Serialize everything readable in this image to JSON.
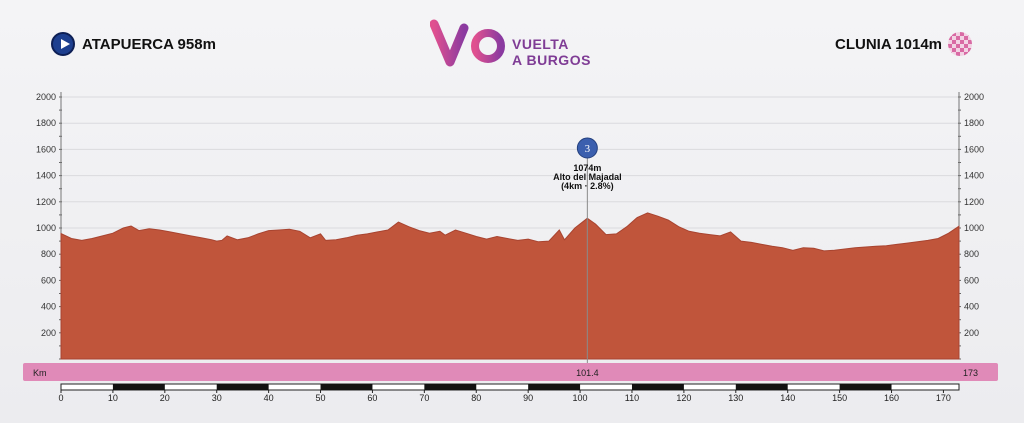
{
  "header": {
    "start": "ATAPUERCA 958m",
    "finish": "CLUNIA 1014m",
    "logo_line1": "VUELTA",
    "logo_line2": "A BURGOS"
  },
  "colors": {
    "profile_fill": "#c0553b",
    "profile_edge": "#a84430",
    "distance_band": "#e08ab8",
    "start_marker": "#1d3f8f",
    "climb_badge": "#3b5fae"
  },
  "chart_data": {
    "type": "area",
    "title": "",
    "xlabel": "",
    "ylabel": "",
    "xlim": [
      0,
      173
    ],
    "ylim": [
      0,
      2000
    ],
    "yticks": [
      200,
      400,
      600,
      800,
      1000,
      1200,
      1400,
      1600,
      1800,
      2000
    ],
    "xticks": [
      0,
      10,
      20,
      30,
      40,
      50,
      60,
      70,
      80,
      90,
      100,
      110,
      120,
      130,
      140,
      150,
      160,
      170
    ],
    "km_label": "Km",
    "band_marks": [
      "101.4",
      "173"
    ],
    "series": [
      {
        "values": [
          [
            0,
            958
          ],
          [
            2,
            920
          ],
          [
            4,
            905
          ],
          [
            6,
            920
          ],
          [
            8,
            940
          ],
          [
            10,
            960
          ],
          [
            12,
            1000
          ],
          [
            13.5,
            1015
          ],
          [
            15,
            980
          ],
          [
            17,
            995
          ],
          [
            19,
            985
          ],
          [
            21,
            970
          ],
          [
            23,
            955
          ],
          [
            25,
            940
          ],
          [
            27,
            925
          ],
          [
            29,
            910
          ],
          [
            30,
            900
          ],
          [
            31,
            905
          ],
          [
            32,
            940
          ],
          [
            34,
            910
          ],
          [
            36,
            925
          ],
          [
            38,
            955
          ],
          [
            40,
            980
          ],
          [
            42,
            985
          ],
          [
            44,
            990
          ],
          [
            46,
            975
          ],
          [
            48,
            925
          ],
          [
            50,
            955
          ],
          [
            51,
            905
          ],
          [
            53,
            910
          ],
          [
            55,
            925
          ],
          [
            57,
            945
          ],
          [
            59,
            955
          ],
          [
            61,
            970
          ],
          [
            63,
            985
          ],
          [
            65,
            1045
          ],
          [
            67,
            1010
          ],
          [
            69,
            980
          ],
          [
            71,
            960
          ],
          [
            73,
            975
          ],
          [
            74,
            945
          ],
          [
            76,
            985
          ],
          [
            78,
            960
          ],
          [
            80,
            935
          ],
          [
            82,
            915
          ],
          [
            84,
            935
          ],
          [
            86,
            920
          ],
          [
            88,
            905
          ],
          [
            90,
            915
          ],
          [
            92,
            895
          ],
          [
            94,
            900
          ],
          [
            96,
            985
          ],
          [
            97,
            910
          ],
          [
            99,
            1000
          ],
          [
            101.4,
            1074
          ],
          [
            103,
            1030
          ],
          [
            105,
            950
          ],
          [
            107,
            955
          ],
          [
            109,
            1010
          ],
          [
            111,
            1080
          ],
          [
            113,
            1115
          ],
          [
            115,
            1090
          ],
          [
            117,
            1060
          ],
          [
            119,
            1010
          ],
          [
            121,
            975
          ],
          [
            123,
            960
          ],
          [
            125,
            950
          ],
          [
            127,
            940
          ],
          [
            129,
            970
          ],
          [
            131,
            900
          ],
          [
            133,
            890
          ],
          [
            135,
            875
          ],
          [
            137,
            860
          ],
          [
            139,
            850
          ],
          [
            141,
            830
          ],
          [
            143,
            850
          ],
          [
            145,
            845
          ],
          [
            147,
            825
          ],
          [
            149,
            830
          ],
          [
            151,
            840
          ],
          [
            153,
            850
          ],
          [
            155,
            855
          ],
          [
            157,
            860
          ],
          [
            159,
            865
          ],
          [
            161,
            875
          ],
          [
            163,
            885
          ],
          [
            165,
            895
          ],
          [
            167,
            905
          ],
          [
            169,
            920
          ],
          [
            171,
            960
          ],
          [
            173,
            1014
          ]
        ]
      }
    ],
    "annotations": [
      {
        "km": 101.4,
        "category": "3",
        "altitude_label": "1074m",
        "name": "Alto del Majadal",
        "detail": "(4km · 2.8%)"
      }
    ]
  }
}
